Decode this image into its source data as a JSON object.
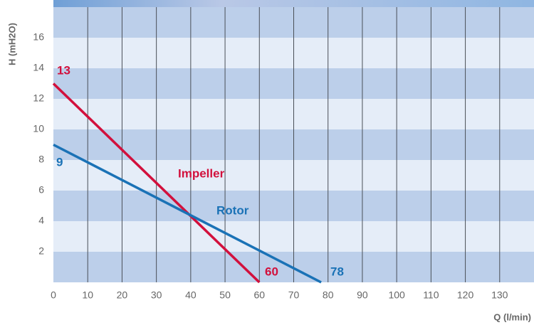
{
  "chart_data": {
    "type": "line",
    "x_label": "Q (l/min)",
    "y_label": "H (mH2O)",
    "series": [
      {
        "name": "Impeller",
        "color": "#d2103c",
        "x": [
          0,
          60
        ],
        "values": [
          13,
          0
        ]
      },
      {
        "name": "Rotor",
        "color": "#1a72b6",
        "x": [
          0,
          78
        ],
        "values": [
          9,
          0
        ]
      }
    ],
    "xlim": [
      0,
      140
    ],
    "ylim": [
      0,
      18
    ],
    "xticks": [
      0,
      10,
      20,
      30,
      40,
      50,
      60,
      70,
      80,
      90,
      100,
      110,
      120,
      130
    ],
    "yticks": [
      2,
      4,
      6,
      8,
      10,
      12,
      14,
      16
    ],
    "grid": true,
    "stripe_colors": [
      "#bccfea",
      "#e5edf8"
    ]
  }
}
